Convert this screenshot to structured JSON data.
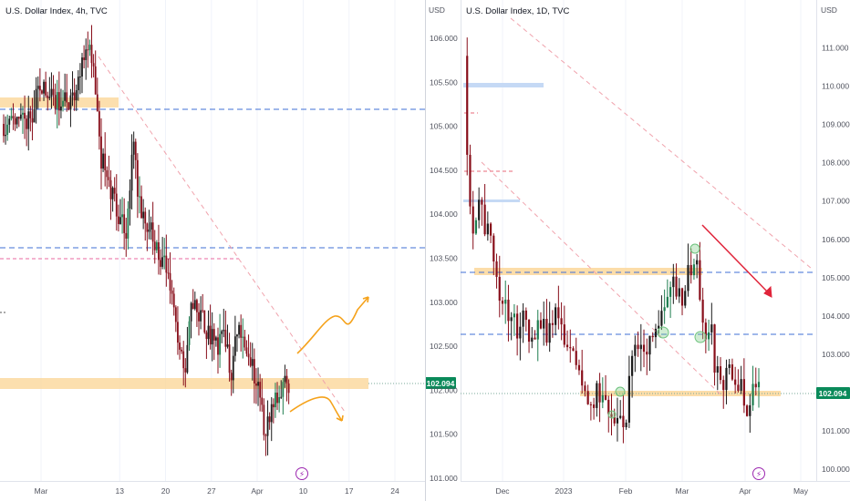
{
  "left_panel": {
    "title": "U.S. Dollar Index, 4h, TVC",
    "x_ticks": [
      "Mar",
      "13",
      "20",
      "27",
      "Apr",
      "10",
      "17",
      "24"
    ],
    "last_price": "102.094",
    "event_icon": "lightning-icon"
  },
  "right_panel": {
    "title": "U.S. Dollar Index, 1D, TVC",
    "y_unit_left": "USD",
    "y_unit_right": "USD",
    "left_axis_ticks": [
      "106.000",
      "105.500",
      "105.000",
      "104.500",
      "104.000",
      "103.500",
      "103.000",
      "102.500",
      "102.000",
      "101.500",
      "101.000"
    ],
    "right_axis_ticks": [
      "111.000",
      "110.000",
      "109.000",
      "108.000",
      "107.000",
      "106.000",
      "105.000",
      "104.000",
      "103.000",
      "102.000",
      "101.000",
      "100.000"
    ],
    "x_ticks": [
      "Dec",
      "2023",
      "Feb",
      "Mar",
      "Apr",
      "May"
    ],
    "last_price": "102.094",
    "event_icon": "lightning-icon"
  },
  "colors": {
    "up_candle": "#1b1b1b",
    "down_candle": "#880e1a",
    "bull_accent": "#1e7d4f",
    "zone_fill": "#fbd79a",
    "blue_dashed": "#3f6fd6",
    "pink_dashed": "#f0a3ad",
    "orange_arrow": "#f5a21b",
    "red_arrow": "#e0243a",
    "price_tag": "#0a8a5a",
    "circle_marker": "#6cc27c"
  },
  "chart_data": [
    {
      "type": "candlestick",
      "title": "U.S. Dollar Index, 4h, TVC",
      "x_tick_labels": [
        "Mar",
        "13",
        "20",
        "27",
        "Apr",
        "10",
        "17",
        "24"
      ],
      "last_price": 102.094,
      "path_points": [
        [
          "Feb 27",
          104.8
        ],
        [
          "Mar 1",
          105.2
        ],
        [
          "Mar 3",
          105.0
        ],
        [
          "Mar 6",
          105.1
        ],
        [
          "Mar 8",
          105.7
        ],
        [
          "Mar 9",
          105.4
        ],
        [
          "Mar 10",
          104.5
        ],
        [
          "Mar 13",
          103.8
        ],
        [
          "Mar 14",
          103.7
        ],
        [
          "Mar 15",
          104.6
        ],
        [
          "Mar 16",
          104.0
        ],
        [
          "Mar 17",
          103.8
        ],
        [
          "Mar 20",
          103.3
        ],
        [
          "Mar 21",
          103.0
        ],
        [
          "Mar 22",
          102.4
        ],
        [
          "Mar 23",
          102.2
        ],
        [
          "Mar 24",
          102.9
        ],
        [
          "Mar 27",
          102.6
        ],
        [
          "Mar 28",
          102.5
        ],
        [
          "Mar 29",
          102.6
        ],
        [
          "Mar 30",
          102.2
        ],
        [
          "Mar 31",
          102.7
        ],
        [
          "Apr 3",
          102.1
        ],
        [
          "Apr 4",
          101.6
        ],
        [
          "Apr 5",
          101.8
        ],
        [
          "Apr 6",
          101.9
        ],
        [
          "Apr 7",
          102.1
        ]
      ],
      "horizontal_levels": [
        {
          "style": "blue-dashed",
          "value": 104.9
        },
        {
          "style": "blue-dashed",
          "value": 103.6
        },
        {
          "style": "pink-dashed",
          "value": 103.5
        },
        {
          "style": "grey-dotted",
          "value": 102.094
        }
      ],
      "zones": [
        {
          "from": 104.95,
          "to": 105.1,
          "start": "Feb 27",
          "end": "Mar 10"
        },
        {
          "from": 101.95,
          "to": 102.1,
          "start": "Feb 27",
          "end": "Apr 20"
        }
      ],
      "trendline": {
        "style": "pink-dashed",
        "from": [
          "Mar 8",
          105.7
        ],
        "to": [
          "Apr 14",
          101.6
        ]
      },
      "projections": [
        {
          "color": "orange",
          "direction": "up",
          "from": [
            "Apr 6",
            102.2
          ],
          "to": [
            "Apr 17",
            103.2
          ]
        },
        {
          "color": "orange",
          "direction": "down",
          "from": [
            "Apr 6",
            101.9
          ],
          "to": [
            "Apr 13",
            101.7
          ]
        }
      ]
    },
    {
      "type": "candlestick",
      "title": "U.S. Dollar Index, 1D, TVC",
      "y_axis_left": {
        "unit": "USD",
        "range": [
          100.95,
          106.05
        ],
        "ticks": [
          106.0,
          105.5,
          105.0,
          104.5,
          104.0,
          103.5,
          103.0,
          102.5,
          102.0,
          101.5,
          101.0
        ]
      },
      "y_axis_right": {
        "unit": "USD",
        "range": [
          99.9,
          111.5
        ],
        "ticks": [
          111,
          110,
          109,
          108,
          107,
          106,
          105,
          104,
          103,
          102,
          101,
          100
        ]
      },
      "x_tick_labels": [
        "Dec",
        "2023",
        "Feb",
        "Mar",
        "Apr",
        "May"
      ],
      "last_price": 102.094,
      "path_points": [
        [
          "Nov 14",
          105.8
        ],
        [
          "Nov 16",
          104.3
        ],
        [
          "Nov 18",
          103.8
        ],
        [
          "Nov 21",
          104.4
        ],
        [
          "Nov 23",
          103.9
        ],
        [
          "Nov 25",
          103.7
        ],
        [
          "Nov 28",
          103.4
        ],
        [
          "Nov 30",
          103.0
        ],
        [
          "Dec 5",
          102.8
        ],
        [
          "Dec 8",
          102.7
        ],
        [
          "Dec 12",
          102.9
        ],
        [
          "Dec 15",
          102.6
        ],
        [
          "Dec 20",
          102.8
        ],
        [
          "Dec 23",
          102.6
        ],
        [
          "Dec 28",
          103.0
        ],
        [
          "Jan 3",
          102.5
        ],
        [
          "Jan 6",
          102.3
        ],
        [
          "Jan 10",
          102.0
        ],
        [
          "Jan 14",
          101.8
        ],
        [
          "Jan 18",
          102.0
        ],
        [
          "Jan 23",
          101.8
        ],
        [
          "Feb 1",
          101.6
        ],
        [
          "Feb 3",
          102.4
        ],
        [
          "Feb 7",
          102.5
        ],
        [
          "Feb 10",
          102.4
        ],
        [
          "Feb 14",
          102.5
        ],
        [
          "Feb 17",
          102.7
        ],
        [
          "Feb 21",
          102.9
        ],
        [
          "Feb 24",
          103.2
        ],
        [
          "Feb 28",
          103.0
        ],
        [
          "Mar 3",
          103.3
        ],
        [
          "Mar 8",
          103.6
        ],
        [
          "Mar 10",
          103.0
        ],
        [
          "Mar 13",
          102.6
        ],
        [
          "Mar 15",
          102.8
        ],
        [
          "Mar 17",
          102.3
        ],
        [
          "Mar 21",
          102.1
        ],
        [
          "Mar 23",
          102.3
        ],
        [
          "Mar 27",
          102.2
        ],
        [
          "Mar 30",
          102.0
        ],
        [
          "Apr 3",
          101.8
        ],
        [
          "Apr 5",
          101.9
        ],
        [
          "Apr 6",
          102.1
        ]
      ],
      "horizontal_levels": [
        {
          "style": "blue-dashed",
          "value": 103.3
        },
        {
          "style": "blue-dashed",
          "value": 102.65
        },
        {
          "style": "grey-dotted",
          "value": 102.094
        }
      ],
      "zones": [
        {
          "color": "orange",
          "from": 103.3,
          "to": 103.38,
          "start": "Nov 22",
          "end": "Mar 10"
        },
        {
          "color": "orange",
          "from": 102.0,
          "to": 102.07,
          "start": "Jan 8",
          "end": "Apr 10"
        },
        {
          "color": "blue",
          "from": 105.44,
          "to": 105.5,
          "start": "Nov 14",
          "end": "Dec 14"
        },
        {
          "color": "blue",
          "from": 104.14,
          "to": 104.17,
          "start": "Nov 14",
          "end": "Nov 28"
        }
      ],
      "trendlines": [
        {
          "style": "pink-dashed",
          "from": [
            "Nov 21",
            104.6
          ],
          "to": [
            "Mar 16",
            101.9
          ]
        },
        {
          "style": "pink-dashed",
          "from": [
            "Nov 26",
            106.1
          ],
          "to": [
            "May 1",
            103.4
          ]
        }
      ],
      "forecast_arrow": {
        "color": "red",
        "from": [
          "Mar 12",
          104.0
        ],
        "to": [
          "Apr 5",
          103.1
        ]
      },
      "circle_markers": [
        [
          "Feb 22",
          102.7
        ],
        [
          "Mar 9",
          103.57
        ],
        [
          "Mar 11",
          102.66
        ],
        [
          "Jan 21",
          101.9
        ],
        [
          "Jan 20",
          101.7
        ]
      ]
    }
  ]
}
